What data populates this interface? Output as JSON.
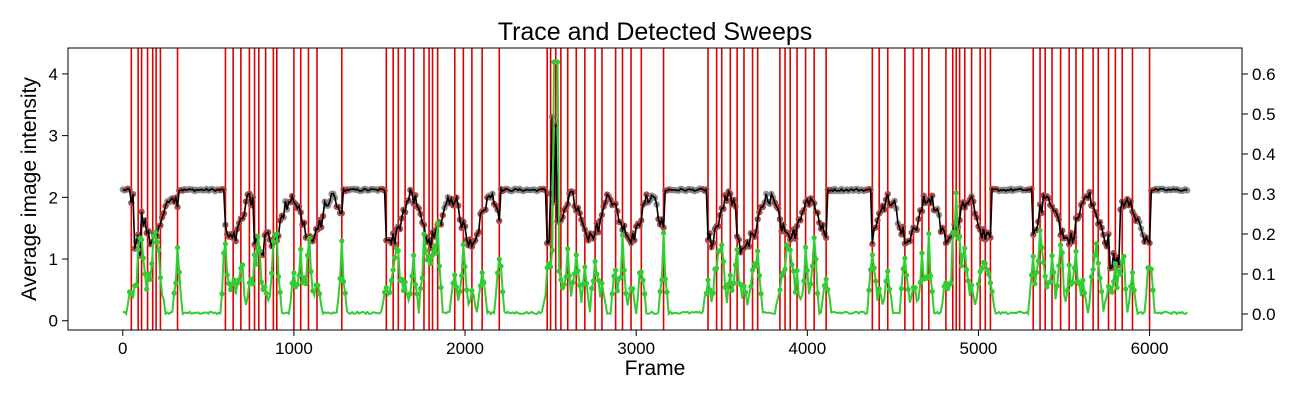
{
  "chart_data": {
    "type": "line",
    "title": "Trace and Detected Sweeps",
    "xlabel": "Frame",
    "ylabel": "Average image intensity",
    "y2label": "",
    "xlim": [
      -320,
      6540
    ],
    "ylim": [
      -0.15,
      4.42
    ],
    "y2lim": [
      -0.04,
      0.665
    ],
    "xticks": [
      0,
      1000,
      2000,
      3000,
      4000,
      5000,
      6000
    ],
    "yticks": [
      0,
      1,
      2,
      3,
      4
    ],
    "y2ticks": [
      0.0,
      0.1,
      0.2,
      0.3,
      0.4,
      0.5,
      0.6
    ],
    "y2tick_labels": [
      "0.0",
      "0.1",
      "0.2",
      "0.3",
      "0.4",
      "0.5",
      "0.6"
    ],
    "grid": false,
    "legend": "none",
    "colors": {
      "trace": "#000000",
      "trace_points": "#808080",
      "sweep_points": "#b04a4a",
      "sweep_lines": "#e00000",
      "derivative": "#33cc33"
    },
    "sweep_frames": [
      50,
      90,
      110,
      145,
      175,
      195,
      220,
      320,
      600,
      645,
      690,
      740,
      770,
      795,
      835,
      880,
      900,
      1000,
      1040,
      1085,
      1135,
      1280,
      1540,
      1580,
      1610,
      1650,
      1700,
      1760,
      1790,
      1810,
      1840,
      1940,
      1990,
      2040,
      2100,
      2200,
      2480,
      2500,
      2530,
      2560,
      2600,
      2650,
      2700,
      2760,
      2800,
      2880,
      2920,
      2970,
      3030,
      3160,
      3420,
      3470,
      3500,
      3550,
      3590,
      3630,
      3680,
      3710,
      3840,
      3870,
      3900,
      3940,
      3990,
      4040,
      4110,
      4380,
      4420,
      4470,
      4570,
      4620,
      4670,
      4710,
      4810,
      4850,
      4870,
      4890,
      4920,
      4960,
      5010,
      5040,
      5070,
      5320,
      5360,
      5390,
      5430,
      5480,
      5530,
      5570,
      5610,
      5670,
      5700,
      5760,
      5800,
      5840,
      5900,
      6000
    ],
    "derivative_baseline": 0.0,
    "derivative_peak_max": 0.63
  }
}
